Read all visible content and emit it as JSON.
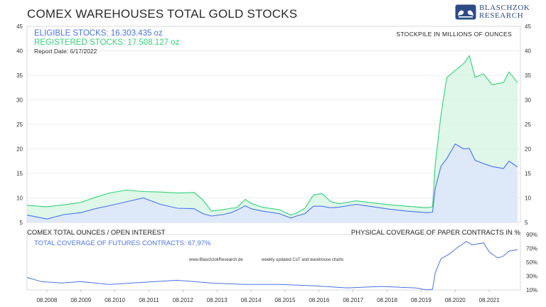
{
  "title": "COMEX WAREHOUSES TOTAL GOLD STOCKS",
  "logo": {
    "line1": "BLASCHZOK",
    "line2": "RESEARCH",
    "icon": "bull-bear-logo-icon"
  },
  "legend": {
    "eligible": "ELIGIBLE STOCKS: 16.303.435 oz",
    "registered": "REGISTERED STOCKS: 17.508.127 oz",
    "report_date": "Report Date: 6/17/2022"
  },
  "unit_note": "STOCKPILE IN MILLIONS OF OUNCES",
  "lower": {
    "left_label": "COMEX TOTAL OUNCES / OPEN INTEREST",
    "right_label": "PHYSICAL COVERAGE OF PAPER CONTRACTS IN %",
    "coverage": "TOTAL COVERAGE OF FUTURES CONTRACTS: 67,97%"
  },
  "footer": {
    "site": "www.BlaschzokResearch.de",
    "note": "weekly updated CoT and warehouse charts"
  },
  "colors": {
    "eligible": "#4a74e6",
    "registered": "#34d27a",
    "eligible_fill": "#dde6fb",
    "registered_fill": "#d8f6e4",
    "grid": "#d9d9d9"
  },
  "chart_data": [
    {
      "type": "area",
      "ylim": [
        5,
        45
      ],
      "y_ticks": [
        5,
        10,
        15,
        20,
        25,
        30,
        35,
        40,
        45
      ],
      "x_ticks": [
        "08.2008",
        "08.2009",
        "08.2010",
        "08.2011",
        "08.2012",
        "08.2013",
        "08.2014",
        "08.2015",
        "08.2016",
        "08.2017",
        "08.2018",
        "08.2019",
        "08.2020",
        "08.2021"
      ],
      "grid": true,
      "series": [
        {
          "name": "REGISTERED STOCKS",
          "points": [
            [
              "2008-01",
              8.5
            ],
            [
              "2008-08",
              8.2
            ],
            [
              "2009-02",
              8.6
            ],
            [
              "2009-08",
              9.1
            ],
            [
              "2010-01",
              10.1
            ],
            [
              "2010-06",
              11.0
            ],
            [
              "2010-12",
              11.6
            ],
            [
              "2011-06",
              11.3
            ],
            [
              "2011-12",
              11.2
            ],
            [
              "2012-06",
              11.0
            ],
            [
              "2012-12",
              11.1
            ],
            [
              "2013-03",
              9.6
            ],
            [
              "2013-06",
              7.3
            ],
            [
              "2013-10",
              7.6
            ],
            [
              "2014-01",
              7.9
            ],
            [
              "2014-03",
              8.0
            ],
            [
              "2014-06",
              9.7
            ],
            [
              "2014-08",
              8.9
            ],
            [
              "2014-12",
              8.1
            ],
            [
              "2015-06",
              7.6
            ],
            [
              "2015-10",
              6.5
            ],
            [
              "2015-12",
              6.9
            ],
            [
              "2016-03",
              7.9
            ],
            [
              "2016-06",
              10.6
            ],
            [
              "2016-09",
              10.9
            ],
            [
              "2016-12",
              9.3
            ],
            [
              "2017-03",
              8.8
            ],
            [
              "2017-09",
              9.4
            ],
            [
              "2018-03",
              9.0
            ],
            [
              "2018-09",
              8.6
            ],
            [
              "2019-03",
              8.3
            ],
            [
              "2019-10",
              8.0
            ],
            [
              "2019-12",
              8.2
            ],
            [
              "2020-01",
              17.0
            ],
            [
              "2020-03",
              27.0
            ],
            [
              "2020-05",
              34.5
            ],
            [
              "2020-08",
              36.0
            ],
            [
              "2020-11",
              37.4
            ],
            [
              "2021-01",
              39.0
            ],
            [
              "2021-03",
              34.6
            ],
            [
              "2021-06",
              35.3
            ],
            [
              "2021-09",
              33.1
            ],
            [
              "2022-01",
              33.5
            ],
            [
              "2022-03",
              35.7
            ],
            [
              "2022-06",
              33.5
            ]
          ]
        },
        {
          "name": "ELIGIBLE STOCKS",
          "points": [
            [
              "2008-01",
              6.5
            ],
            [
              "2008-08",
              5.7
            ],
            [
              "2009-02",
              6.6
            ],
            [
              "2009-08",
              7.0
            ],
            [
              "2010-01",
              7.8
            ],
            [
              "2010-06",
              8.4
            ],
            [
              "2010-12",
              9.2
            ],
            [
              "2011-06",
              10.0
            ],
            [
              "2011-12",
              8.7
            ],
            [
              "2012-06",
              7.9
            ],
            [
              "2012-12",
              7.8
            ],
            [
              "2013-03",
              6.8
            ],
            [
              "2013-06",
              6.3
            ],
            [
              "2013-10",
              6.6
            ],
            [
              "2014-01",
              7.0
            ],
            [
              "2014-03",
              7.5
            ],
            [
              "2014-06",
              8.4
            ],
            [
              "2014-08",
              7.8
            ],
            [
              "2014-12",
              7.3
            ],
            [
              "2015-06",
              6.8
            ],
            [
              "2015-10",
              5.9
            ],
            [
              "2015-12",
              6.3
            ],
            [
              "2016-03",
              6.8
            ],
            [
              "2016-06",
              8.3
            ],
            [
              "2016-09",
              8.3
            ],
            [
              "2016-12",
              8.0
            ],
            [
              "2017-03",
              8.1
            ],
            [
              "2017-09",
              8.7
            ],
            [
              "2018-03",
              8.2
            ],
            [
              "2018-09",
              7.7
            ],
            [
              "2019-03",
              7.3
            ],
            [
              "2019-10",
              7.0
            ],
            [
              "2019-12",
              7.1
            ],
            [
              "2020-01",
              12.0
            ],
            [
              "2020-03",
              16.5
            ],
            [
              "2020-05",
              18.0
            ],
            [
              "2020-08",
              21.0
            ],
            [
              "2020-11",
              20.0
            ],
            [
              "2021-01",
              20.1
            ],
            [
              "2021-03",
              17.7
            ],
            [
              "2021-06",
              17.0
            ],
            [
              "2021-09",
              16.4
            ],
            [
              "2022-01",
              16.0
            ],
            [
              "2022-03",
              17.5
            ],
            [
              "2022-06",
              16.3
            ]
          ]
        }
      ]
    },
    {
      "type": "line",
      "ylim": [
        10,
        90
      ],
      "y_ticks": [
        10,
        30,
        50,
        70,
        90
      ],
      "y_tick_labels": [
        "10%",
        "30%",
        "50%",
        "70%",
        "90%"
      ],
      "grid": false,
      "series": [
        {
          "name": "TOTAL COVERAGE OF FUTURES CONTRACTS",
          "points": [
            [
              "2008-01",
              28
            ],
            [
              "2008-06",
              22
            ],
            [
              "2009-01",
              20
            ],
            [
              "2009-08",
              22
            ],
            [
              "2010-06",
              18
            ],
            [
              "2011-06",
              21
            ],
            [
              "2012-06",
              24
            ],
            [
              "2013-06",
              20
            ],
            [
              "2014-06",
              18
            ],
            [
              "2015-06",
              18
            ],
            [
              "2016-06",
              16
            ],
            [
              "2017-06",
              13
            ],
            [
              "2018-06",
              15
            ],
            [
              "2019-06",
              13
            ],
            [
              "2019-10",
              10
            ],
            [
              "2019-12",
              11
            ],
            [
              "2020-01",
              35
            ],
            [
              "2020-03",
              55
            ],
            [
              "2020-06",
              62
            ],
            [
              "2020-09",
              72
            ],
            [
              "2020-12",
              80
            ],
            [
              "2021-02",
              75
            ],
            [
              "2021-06",
              78
            ],
            [
              "2021-08",
              65
            ],
            [
              "2021-11",
              56
            ],
            [
              "2022-01",
              59
            ],
            [
              "2022-03",
              66
            ],
            [
              "2022-06",
              68
            ]
          ]
        }
      ]
    }
  ]
}
